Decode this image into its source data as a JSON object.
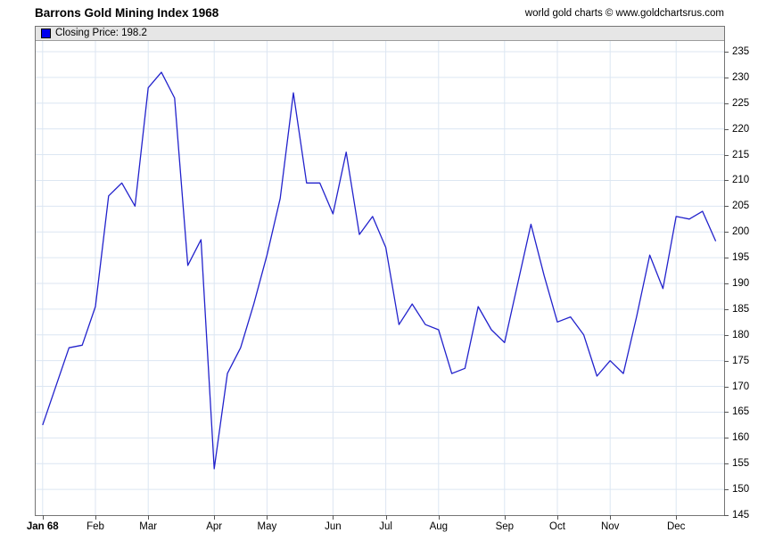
{
  "header": {
    "title": "Barrons Gold Mining Index 1968",
    "attribution": "world gold charts © www.goldchartsrus.com"
  },
  "legend": {
    "text": "Closing Price: 198.2",
    "swatch_color": "#0000ee"
  },
  "colors": {
    "line": "#2222cc",
    "gridline": "#dce6f2",
    "frame": "#757575",
    "tick": "#555555"
  },
  "chart_data": {
    "type": "line",
    "title": "Barrons Gold Mining Index 1968",
    "xlabel": "",
    "ylabel": "",
    "ylim": [
      145,
      235
    ],
    "y_tick_step": 5,
    "grid": true,
    "legend_position": "top-left",
    "x_unit": "week",
    "x_tick_labels": [
      "Jan 68",
      "Feb",
      "Mar",
      "Apr",
      "May",
      "Jun",
      "Jul",
      "Aug",
      "Sep",
      "Oct",
      "Nov",
      "Dec"
    ],
    "x_tick_week_indices": [
      0,
      4,
      8,
      13,
      17,
      22,
      26,
      30,
      35,
      39,
      43,
      48
    ],
    "series": [
      {
        "name": "Closing Price",
        "color": "#2222cc",
        "last_value": 198.2,
        "values": [
          162.5,
          170,
          177.5,
          178,
          185.5,
          207,
          209.5,
          205,
          228,
          231,
          226,
          193.5,
          198.5,
          154,
          172.5,
          177.5,
          186,
          195.5,
          206.5,
          227,
          209.5,
          209.5,
          203.5,
          215.5,
          199.5,
          203,
          197,
          182,
          186,
          182,
          181,
          172.5,
          173.5,
          185.5,
          181,
          178.5,
          190,
          201.5,
          191.5,
          182.5,
          183.5,
          180,
          172,
          175,
          172.5,
          183.5,
          195.5,
          189,
          203,
          202.5,
          204,
          198.2
        ]
      }
    ]
  }
}
